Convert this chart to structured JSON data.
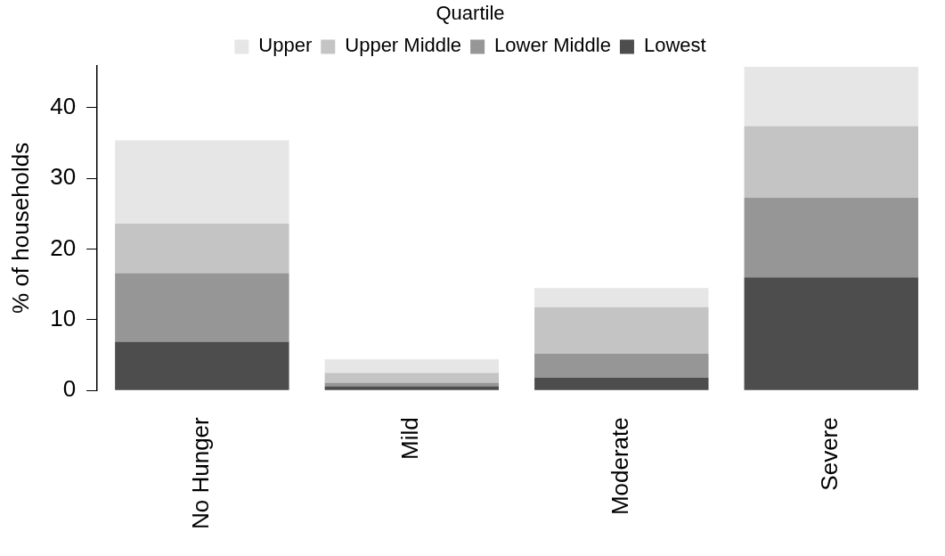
{
  "chart_data": {
    "type": "bar",
    "stacked": true,
    "ylabel": "% of households",
    "legend_title": "Quartile",
    "legend": "top",
    "categories": [
      "No Hunger",
      "Mild",
      "Moderate",
      "Severe"
    ],
    "series": [
      {
        "name": "Lowest",
        "color": "#4d4d4d",
        "values": [
          6.9,
          0.6,
          1.8,
          16.0
        ]
      },
      {
        "name": "Lower Middle",
        "color": "#969696",
        "values": [
          9.7,
          0.5,
          3.4,
          11.3
        ]
      },
      {
        "name": "Upper Middle",
        "color": "#c4c4c4",
        "values": [
          7.0,
          1.4,
          6.6,
          10.1
        ]
      },
      {
        "name": "Upper",
        "color": "#e6e6e6",
        "values": [
          11.8,
          1.9,
          2.7,
          8.4
        ]
      }
    ],
    "ylim": [
      0,
      46
    ],
    "yticks": [
      0,
      10,
      20,
      30,
      40
    ],
    "grid": false
  }
}
